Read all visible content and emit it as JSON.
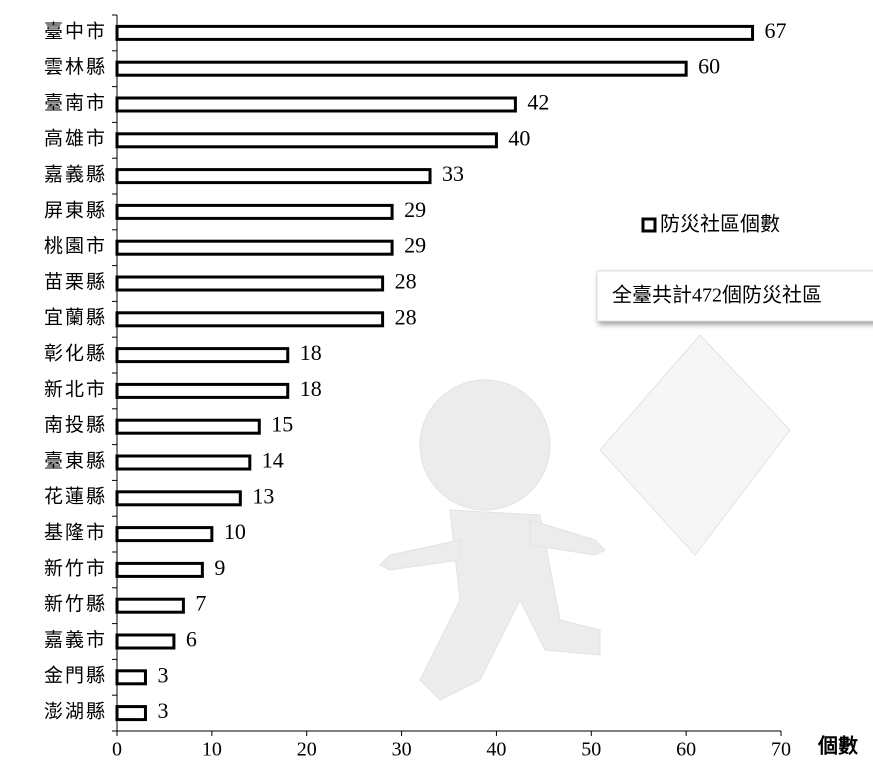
{
  "chart_data": {
    "type": "bar",
    "orientation": "horizontal",
    "categories": [
      "臺中市",
      "雲林縣",
      "臺南市",
      "高雄市",
      "嘉義縣",
      "屏東縣",
      "桃園市",
      "苗栗縣",
      "宜蘭縣",
      "彰化縣",
      "新北市",
      "南投縣",
      "臺東縣",
      "花蓮縣",
      "基隆市",
      "新竹市",
      "新竹縣",
      "嘉義市",
      "金門縣",
      "澎湖縣"
    ],
    "series": [
      {
        "name": "防災社區個數",
        "color": "#ffffff",
        "values": [
          67,
          60,
          42,
          40,
          33,
          29,
          29,
          28,
          28,
          18,
          18,
          15,
          14,
          13,
          10,
          9,
          7,
          6,
          3,
          3
        ]
      }
    ],
    "xlim": [
      0,
      70
    ],
    "xticks": [
      0,
      10,
      20,
      30,
      40,
      50,
      60,
      70
    ],
    "x_label": "個數",
    "annotation": "全臺共計472個防災社區",
    "legend": "right"
  }
}
